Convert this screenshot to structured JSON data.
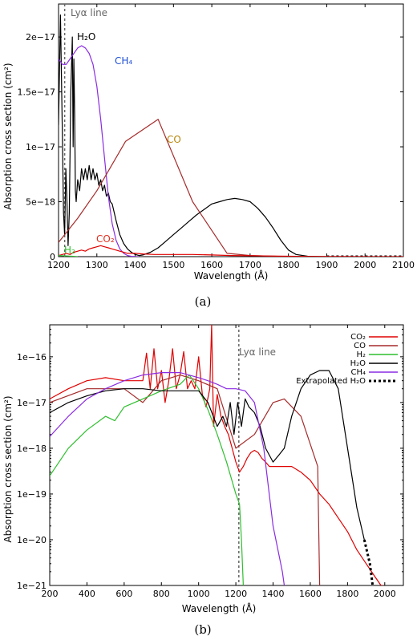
{
  "chart_data": [
    {
      "type": "line",
      "caption": "(a)",
      "xlabel": "Wavelength (Å)",
      "ylabel": "Absorption cross section (cm²)",
      "xlim": [
        1200,
        2100
      ],
      "ylim": [
        0,
        2.3e-17
      ],
      "xticks": [
        "1200",
        "1300",
        "1400",
        "1500",
        "1600",
        "1700",
        "1800",
        "1900",
        "2000",
        "2100"
      ],
      "yticks": [
        "0",
        "5e−18",
        "1e−17",
        "1.5e−17",
        "2e−17"
      ],
      "ytick_values": [
        0,
        5e-18,
        1e-17,
        1.5e-17,
        2e-17
      ],
      "annotations": [
        {
          "text": "Lyα line",
          "color": "#666666"
        },
        {
          "text": "H₂O",
          "color": "#000000"
        },
        {
          "text": "CH₄",
          "color": "#1f4fd6"
        },
        {
          "text": "CO",
          "color": "#b8860b"
        },
        {
          "text": "CO₂",
          "color": "#e03020"
        },
        {
          "text": "H₂",
          "color": "#2fbf2f"
        }
      ],
      "lya_line": 1216,
      "series": [
        {
          "key": "H2O",
          "color": "#000000",
          "dash": "",
          "x": [
            1200,
            1205,
            1210,
            1213,
            1216,
            1219,
            1222,
            1225,
            1228,
            1232,
            1236,
            1238,
            1240,
            1242,
            1244,
            1246,
            1250,
            1255,
            1260,
            1265,
            1270,
            1275,
            1280,
            1285,
            1290,
            1295,
            1300,
            1305,
            1310,
            1315,
            1320,
            1325,
            1330,
            1335,
            1340,
            1350,
            1360,
            1370,
            1380,
            1390,
            1400,
            1410,
            1420,
            1440,
            1460,
            1480,
            1500,
            1520,
            1540,
            1560,
            1580,
            1600,
            1620,
            1640,
            1660,
            1680,
            1700,
            1720,
            1740,
            1760,
            1780,
            1800,
            1820,
            1850,
            1880,
            1900
          ],
          "y": [
            1.2e-17,
            2.2e-17,
            1.1e-17,
            4e-18,
            2e-18,
            8e-18,
            5e-18,
            1e-18,
            4e-18,
            1.5e-17,
            2e-17,
            1e-17,
            1.8e-17,
            1.3e-17,
            6e-18,
            5e-18,
            7e-18,
            6e-18,
            8e-18,
            7e-18,
            8e-18,
            7e-18,
            8.3e-18,
            7e-18,
            8e-18,
            7e-18,
            7.6e-18,
            6.5e-18,
            7e-18,
            6e-18,
            6.5e-18,
            5.5e-18,
            5.8e-18,
            5e-18,
            4.8e-18,
            3.3e-18,
            2e-18,
            1.2e-18,
            7e-19,
            4e-19,
            2e-19,
            1e-19,
            1.5e-19,
            4e-19,
            8e-19,
            1.4e-18,
            2e-18,
            2.6e-18,
            3.2e-18,
            3.8e-18,
            4.3e-18,
            4.8e-18,
            5e-18,
            5.2e-18,
            5.3e-18,
            5.2e-18,
            5e-18,
            4.4e-18,
            3.6e-18,
            2.6e-18,
            1.5e-18,
            6e-19,
            2e-19,
            4e-20,
            1e-20,
            0
          ]
        },
        {
          "key": "H2O-extrapolated",
          "color": "#000000",
          "dash": "3,3",
          "x": [
            1900,
            2100
          ],
          "y": [
            0,
            0
          ]
        },
        {
          "key": "CH4",
          "color": "#8a2be2",
          "dash": "",
          "x": [
            1200,
            1210,
            1220,
            1230,
            1240,
            1250,
            1260,
            1270,
            1280,
            1290,
            1300,
            1310,
            1320,
            1330,
            1340,
            1350,
            1360,
            1370,
            1380,
            1390,
            1400,
            1410
          ],
          "y": [
            1.8e-17,
            1.75e-17,
            1.75e-17,
            1.8e-17,
            1.85e-17,
            1.9e-17,
            1.92e-17,
            1.9e-17,
            1.85e-17,
            1.75e-17,
            1.55e-17,
            1.25e-17,
            9e-18,
            5.5e-18,
            3e-18,
            1.5e-18,
            7e-19,
            3e-19,
            1e-19,
            3e-20,
            1e-20,
            0
          ]
        },
        {
          "key": "CO",
          "color": "#a52a2a",
          "dash": "",
          "x": [
            1200,
            1250,
            1300,
            1375,
            1460,
            1550,
            1640,
            1700,
            1800,
            1900
          ],
          "y": [
            1.3e-18,
            3.5e-18,
            6e-18,
            1.05e-17,
            1.25e-17,
            5e-18,
            3e-19,
            1e-19,
            0,
            0
          ]
        },
        {
          "key": "CO2",
          "color": "#e00000",
          "dash": "",
          "x": [
            1200,
            1210,
            1220,
            1230,
            1240,
            1250,
            1260,
            1270,
            1280,
            1290,
            1300,
            1310,
            1320,
            1330,
            1340,
            1350,
            1360,
            1370,
            1380,
            1390,
            1400,
            1420,
            1450,
            1500,
            1550,
            1600,
            1650,
            1700,
            1750,
            1800,
            1850,
            1900,
            1950,
            2000,
            2050,
            2100
          ],
          "y": [
            1e-19,
            2e-19,
            3e-19,
            2e-19,
            4e-19,
            5e-19,
            6e-19,
            5e-19,
            7e-19,
            8e-19,
            9e-19,
            1e-18,
            9e-19,
            8e-19,
            7e-19,
            6e-19,
            5e-19,
            4e-19,
            3e-19,
            3e-19,
            3e-19,
            2.5e-19,
            2e-19,
            2e-19,
            2e-19,
            1.5e-19,
            1e-19,
            8e-20,
            6e-20,
            4e-20,
            2e-20,
            1e-20,
            5e-21,
            2e-21,
            1e-21,
            0
          ]
        },
        {
          "key": "H2",
          "color": "#2fbf2f",
          "dash": "",
          "x": [
            1200,
            1230,
            1250
          ],
          "y": [
            1e-19,
            5e-20,
            0
          ]
        }
      ]
    },
    {
      "type": "line",
      "caption": "(b)",
      "log_y": true,
      "xlabel": "Wavelength (Å)",
      "ylabel": "Absorption cross section (cm²)",
      "xlim": [
        200,
        2100
      ],
      "ylim": [
        1e-21,
        5e-16
      ],
      "xticks": [
        "200",
        "400",
        "600",
        "800",
        "1000",
        "1200",
        "1400",
        "1600",
        "1800",
        "2000"
      ],
      "xtick_values": [
        200,
        400,
        600,
        800,
        1000,
        1200,
        1400,
        1600,
        1800,
        2000
      ],
      "yticks": [
        "1e−21",
        "1e−20",
        "1e−19",
        "1e−18",
        "1e−17",
        "1e−16"
      ],
      "ytick_values": [
        1e-21,
        1e-20,
        1e-19,
        1e-18,
        1e-17,
        1e-16
      ],
      "lya_label": "Lyα line",
      "lya_line": 1216,
      "legend_position": "top-right",
      "series": [
        {
          "key": "CO2",
          "name": "CO₂",
          "color": "#e00000",
          "dash": "",
          "x": [
            200,
            300,
            400,
            500,
            600,
            700,
            720,
            740,
            760,
            780,
            800,
            820,
            840,
            860,
            880,
            900,
            920,
            940,
            960,
            980,
            1000,
            1020,
            1040,
            1060,
            1070,
            1080,
            1100,
            1120,
            1140,
            1160,
            1180,
            1200,
            1220,
            1240,
            1260,
            1280,
            1300,
            1320,
            1340,
            1360,
            1380,
            1400,
            1450,
            1500,
            1550,
            1600,
            1650,
            1700,
            1750,
            1800,
            1850,
            1900,
            1950,
            1980,
            1990
          ],
          "y": [
            1.2e-17,
            2e-17,
            3e-17,
            3.5e-17,
            3e-17,
            3e-17,
            1.2e-16,
            2e-17,
            1.5e-16,
            2e-17,
            5e-17,
            1e-17,
            3e-17,
            1.5e-16,
            2e-17,
            4e-17,
            1.3e-16,
            2e-17,
            3e-17,
            2e-17,
            1e-16,
            1.5e-17,
            8e-18,
            2e-17,
            5e-16,
            3e-18,
            1.5e-17,
            5e-18,
            3e-18,
            2e-18,
            1e-18,
            5e-19,
            3e-19,
            4e-19,
            6e-19,
            8e-19,
            9e-19,
            8e-19,
            6e-19,
            5e-19,
            4e-19,
            4e-19,
            4e-19,
            4e-19,
            3e-19,
            2e-19,
            1e-19,
            6e-20,
            3e-20,
            1.5e-20,
            6e-21,
            3e-21,
            1.5e-21,
            1e-21,
            1e-21
          ]
        },
        {
          "key": "CO",
          "name": "CO",
          "color": "#a52a2a",
          "dash": "",
          "x": [
            200,
            400,
            600,
            700,
            800,
            900,
            1000,
            1100,
            1200,
            1300,
            1400,
            1460,
            1550,
            1640,
            1650
          ],
          "y": [
            1e-17,
            2e-17,
            2e-17,
            1e-17,
            3e-17,
            4e-17,
            3e-17,
            2e-17,
            1e-18,
            2e-18,
            1e-17,
            1.2e-17,
            5e-18,
            4e-19,
            1e-21
          ]
        },
        {
          "key": "H2",
          "name": "H₂",
          "color": "#2fbf2f",
          "dash": "",
          "x": [
            200,
            300,
            400,
            500,
            550,
            600,
            700,
            800,
            900,
            950,
            1000,
            1050,
            1100,
            1150,
            1200,
            1220,
            1230,
            1240
          ],
          "y": [
            2.5e-19,
            1e-18,
            2.5e-18,
            5e-18,
            4e-18,
            8e-18,
            1.2e-17,
            1.8e-17,
            2.5e-17,
            4e-17,
            2e-17,
            7e-18,
            2e-18,
            5e-19,
            1e-19,
            6e-20,
            1e-20,
            1e-21
          ]
        },
        {
          "key": "H2O",
          "name": "H₂O",
          "color": "#000000",
          "dash": "",
          "x": [
            200,
            300,
            400,
            500,
            600,
            700,
            800,
            900,
            1000,
            1050,
            1100,
            1130,
            1150,
            1170,
            1190,
            1210,
            1230,
            1250,
            1270,
            1300,
            1330,
            1360,
            1400,
            1430,
            1460,
            1500,
            1550,
            1600,
            1650,
            1680,
            1700,
            1750,
            1800,
            1850,
            1890
          ],
          "y": [
            6e-18,
            1e-17,
            1.4e-17,
            1.8e-17,
            2e-17,
            2e-17,
            1.8e-17,
            1.8e-17,
            1.8e-17,
            1e-17,
            3e-18,
            5e-18,
            3e-18,
            1e-17,
            2e-18,
            1e-17,
            3e-18,
            1.2e-17,
            8e-18,
            6e-18,
            3e-18,
            1e-18,
            5e-19,
            7e-19,
            1e-18,
            5e-18,
            2e-17,
            4e-17,
            5e-17,
            5e-17,
            5e-17,
            2e-17,
            1e-18,
            5e-20,
            1e-20
          ]
        },
        {
          "key": "CH4",
          "name": "CH₄",
          "color": "#8a2be2",
          "dash": "",
          "x": [
            200,
            300,
            400,
            500,
            600,
            700,
            800,
            900,
            1000,
            1050,
            1100,
            1150,
            1200,
            1250,
            1300,
            1350,
            1400,
            1450,
            1460
          ],
          "y": [
            1.8e-18,
            5e-18,
            1.2e-17,
            2e-17,
            3e-17,
            4e-17,
            4.5e-17,
            4.5e-17,
            3.5e-17,
            3e-17,
            2.5e-17,
            2e-17,
            2e-17,
            1.8e-17,
            1e-17,
            1e-18,
            2e-20,
            2e-21,
            1e-21
          ]
        },
        {
          "key": "H2O-extrapolated",
          "name": "Extrapolated H₂O",
          "color": "#000000",
          "dash": "3,3",
          "x": [
            1890,
            1920,
            1935
          ],
          "y": [
            1e-20,
            3e-21,
            1e-21
          ]
        }
      ]
    }
  ]
}
